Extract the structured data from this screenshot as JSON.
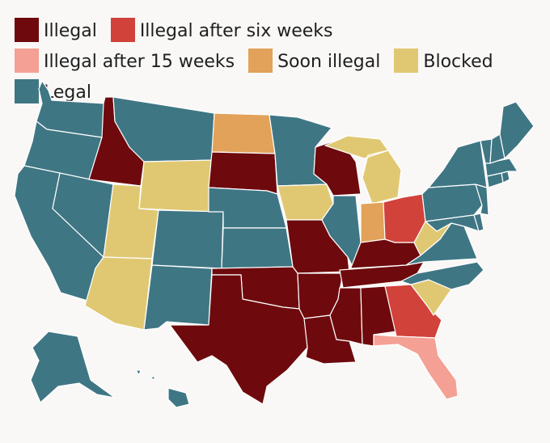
{
  "legend": [
    {
      "label": "Illegal",
      "color": "#6e0a0d"
    },
    {
      "label": "Illegal after six weeks",
      "color": "#d0423a"
    },
    {
      "label": "Illegal after 15 weeks",
      "color": "#f4a094"
    },
    {
      "label": "Soon illegal",
      "color": "#e2a25a"
    },
    {
      "label": "Blocked",
      "color": "#e0c873"
    },
    {
      "label": "Legal",
      "color": "#3f7684"
    }
  ],
  "map": {
    "subject": "United States abortion legality by state",
    "status_colors": {
      "illegal": "#6e0a0d",
      "six_weeks": "#d0423a",
      "fifteen_weeks": "#f4a094",
      "soon_illegal": "#e2a25a",
      "blocked": "#e0c873",
      "legal": "#3f7684"
    },
    "states": {
      "illegal": [
        "Idaho",
        "South Dakota",
        "Wisconsin",
        "Missouri",
        "Arkansas",
        "Oklahoma",
        "Texas",
        "Louisiana",
        "Mississippi",
        "Alabama",
        "Tennessee",
        "Kentucky"
      ],
      "six_weeks": [
        "Ohio",
        "Georgia"
      ],
      "fifteen_weeks": [
        "Florida"
      ],
      "soon_illegal": [
        "North Dakota",
        "Indiana"
      ],
      "blocked": [
        "Wyoming",
        "Utah",
        "Arizona",
        "Iowa",
        "Michigan",
        "West Virginia",
        "South Carolina"
      ],
      "legal": [
        "Washington",
        "Oregon",
        "California",
        "Nevada",
        "Montana",
        "Colorado",
        "New Mexico",
        "Nebraska",
        "Kansas",
        "Minnesota",
        "Illinois",
        "Virginia",
        "North Carolina",
        "Pennsylvania",
        "New York",
        "Maine",
        "Vermont",
        "New Hampshire",
        "Massachusetts",
        "Connecticut",
        "Rhode Island",
        "New Jersey",
        "Delaware",
        "Maryland",
        "Alaska",
        "Hawaii"
      ]
    }
  }
}
